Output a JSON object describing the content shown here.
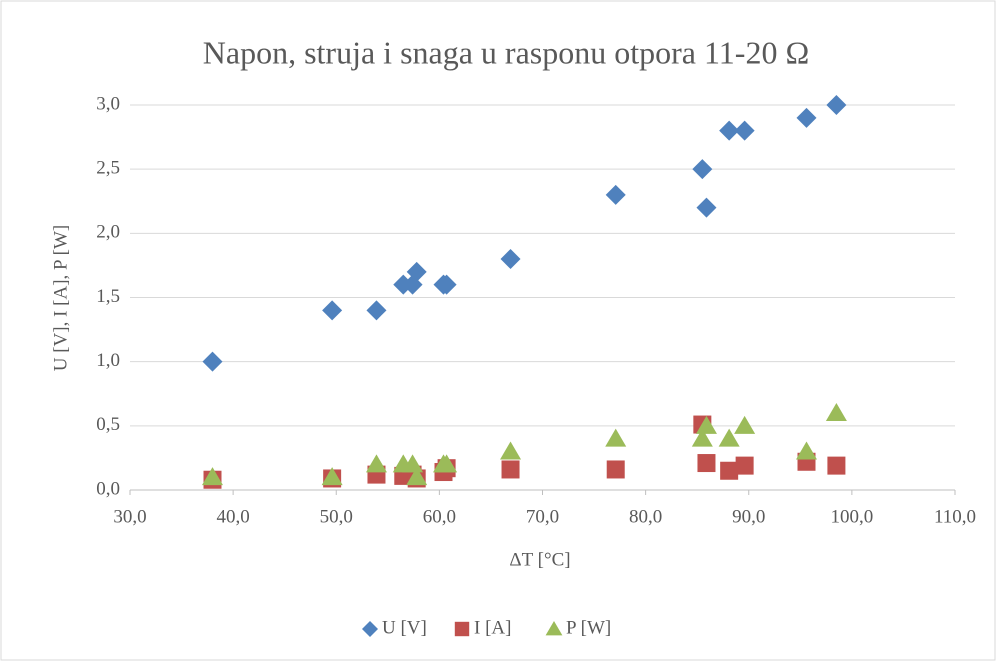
{
  "chart_data": {
    "type": "scatter",
    "title": "Napon, struja i snaga u rasponu otpora 11-20 Ω",
    "x_label": "ΔT [°C]",
    "y_label": "U [V], I [A], P [W]",
    "x": [
      38.0,
      49.6,
      53.9,
      56.5,
      57.4,
      57.8,
      60.4,
      60.7,
      66.9,
      77.1,
      85.5,
      85.9,
      88.1,
      89.6,
      95.6,
      98.5
    ],
    "series": [
      {
        "name": "U [V]",
        "color": "#4f81bd",
        "marker": "diamond",
        "values": [
          1.0,
          1.4,
          1.4,
          1.6,
          1.6,
          1.7,
          1.6,
          1.6,
          1.8,
          2.3,
          2.5,
          2.2,
          2.8,
          2.8,
          2.9,
          3.0
        ]
      },
      {
        "name": "I [A]",
        "color": "#c0504d",
        "marker": "square",
        "values": [
          0.08,
          0.09,
          0.12,
          0.11,
          0.12,
          0.09,
          0.14,
          0.17,
          0.16,
          0.16,
          0.51,
          0.21,
          0.15,
          0.19,
          0.22,
          0.19
        ]
      },
      {
        "name": "P [W]",
        "color": "#9bbb59",
        "marker": "triangle",
        "values": [
          0.1,
          0.1,
          0.2,
          0.2,
          0.2,
          0.1,
          0.2,
          0.2,
          0.3,
          0.4,
          0.4,
          0.5,
          0.4,
          0.5,
          0.3,
          0.6
        ]
      }
    ],
    "xlim": [
      30,
      110
    ],
    "xticks": [
      {
        "value": 30,
        "label": "30,0"
      },
      {
        "value": 40,
        "label": "40,0"
      },
      {
        "value": 50,
        "label": "50,0"
      },
      {
        "value": 60,
        "label": "60,0"
      },
      {
        "value": 70,
        "label": "70,0"
      },
      {
        "value": 80,
        "label": "80,0"
      },
      {
        "value": 90,
        "label": "90,0"
      },
      {
        "value": 100,
        "label": "100,0"
      },
      {
        "value": 110,
        "label": "110,0"
      }
    ],
    "ylim": [
      0,
      3
    ],
    "yticks": [
      {
        "value": 0,
        "label": "0,0"
      },
      {
        "value": 0.5,
        "label": "0,5"
      },
      {
        "value": 1,
        "label": "1,0"
      },
      {
        "value": 1.5,
        "label": "1,5"
      },
      {
        "value": 2,
        "label": "2,0"
      },
      {
        "value": 2.5,
        "label": "2,5"
      },
      {
        "value": 3,
        "label": "3,0"
      }
    ],
    "grid": true,
    "legend": "bottom"
  }
}
